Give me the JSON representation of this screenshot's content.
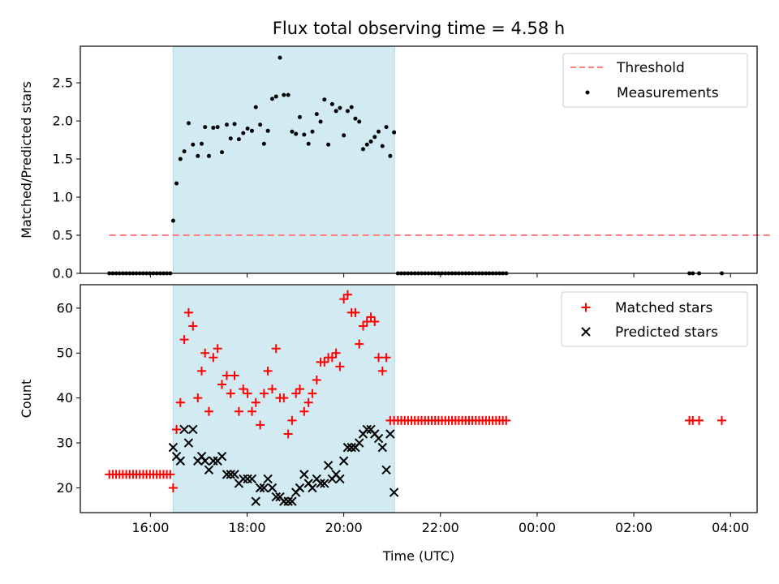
{
  "figure": {
    "title": "Flux total observing time = 4.58 h"
  },
  "chart_data": [
    {
      "type": "scatter",
      "title": "Flux total observing time = 4.58 h",
      "xlabel": "",
      "ylabel": "Matched/Predicted stars",
      "x_unit": "hours since 00:00 UTC (values above 24 are next day)",
      "xlim": [
        14.55,
        28.55
      ],
      "ylim": [
        0,
        2.98
      ],
      "yticks": [
        0.0,
        0.5,
        1.0,
        1.5,
        2.0,
        2.5
      ],
      "ytick_labels": [
        "0.0",
        "0.5",
        "1.0",
        "1.5",
        "2.0",
        "2.5"
      ],
      "grid": false,
      "legend": "top-right",
      "observing_window": [
        16.47,
        21.05
      ],
      "shade_color": "#add8e6",
      "series": [
        {
          "name": "Threshold",
          "style": "dashed-line",
          "color": "#ff7f7f",
          "x": [
            15.15,
            28.85
          ],
          "y": [
            0.5,
            0.5
          ]
        },
        {
          "name": "Measurements",
          "style": "dot",
          "color": "#000000",
          "x": [
            15.15,
            15.22,
            15.29,
            15.36,
            15.43,
            15.5,
            15.57,
            15.64,
            15.71,
            15.78,
            15.85,
            15.92,
            15.99,
            16.06,
            16.13,
            16.2,
            16.27,
            16.34,
            16.41,
            16.47,
            16.54,
            16.62,
            16.7,
            16.79,
            16.88,
            16.98,
            17.06,
            17.13,
            17.21,
            17.3,
            17.39,
            17.48,
            17.58,
            17.66,
            17.74,
            17.83,
            17.92,
            18.01,
            18.1,
            18.18,
            18.27,
            18.35,
            18.43,
            18.52,
            18.6,
            18.68,
            18.76,
            18.85,
            18.93,
            19.01,
            19.09,
            19.18,
            19.27,
            19.35,
            19.44,
            19.52,
            19.6,
            19.68,
            19.76,
            19.84,
            19.92,
            20.0,
            20.08,
            20.16,
            20.24,
            20.32,
            20.4,
            20.48,
            20.56,
            20.64,
            20.72,
            20.8,
            20.88,
            20.96,
            21.04,
            21.12,
            21.19,
            21.26,
            21.33,
            21.4,
            21.47,
            21.54,
            21.61,
            21.68,
            21.75,
            21.82,
            21.89,
            21.96,
            22.03,
            22.1,
            22.17,
            22.24,
            22.31,
            22.38,
            22.45,
            22.52,
            22.59,
            22.66,
            22.73,
            22.8,
            22.87,
            22.94,
            23.01,
            23.08,
            23.15,
            23.22,
            23.29,
            23.36,
            27.15,
            27.22,
            27.35,
            27.82
          ],
          "y": [
            0,
            0,
            0,
            0,
            0,
            0,
            0,
            0,
            0,
            0,
            0,
            0,
            0,
            0,
            0,
            0,
            0,
            0,
            0,
            0.69,
            1.18,
            1.5,
            1.6,
            1.97,
            1.69,
            1.54,
            1.7,
            1.92,
            1.54,
            1.91,
            1.92,
            1.59,
            1.95,
            1.77,
            1.96,
            1.76,
            1.84,
            1.9,
            1.87,
            2.18,
            1.95,
            1.7,
            1.87,
            2.29,
            2.32,
            2.83,
            2.34,
            2.34,
            1.86,
            1.83,
            2.05,
            1.82,
            1.7,
            1.86,
            2.09,
            1.99,
            2.28,
            1.69,
            2.22,
            2.13,
            2.17,
            1.81,
            2.13,
            2.18,
            2.03,
            1.99,
            1.63,
            1.69,
            1.73,
            1.79,
            1.86,
            1.67,
            1.92,
            1.54,
            1.85,
            0,
            0,
            0,
            0,
            0,
            0,
            0,
            0,
            0,
            0,
            0,
            0,
            0,
            0,
            0,
            0,
            0,
            0,
            0,
            0,
            0,
            0,
            0,
            0,
            0,
            0,
            0,
            0,
            0,
            0,
            0,
            0,
            0,
            0,
            0,
            0,
            0
          ]
        }
      ]
    },
    {
      "type": "scatter",
      "title": "",
      "xlabel": "Time (UTC)",
      "ylabel": "Count",
      "x_unit": "hours since 00:00 UTC (values above 24 are next day)",
      "xlim": [
        14.55,
        28.55
      ],
      "ylim": [
        14.5,
        65.2
      ],
      "xticks": [
        16,
        18,
        20,
        22,
        24,
        26,
        28
      ],
      "xtick_labels": [
        "16:00",
        "18:00",
        "20:00",
        "22:00",
        "00:00",
        "02:00",
        "04:00"
      ],
      "yticks": [
        20,
        30,
        40,
        50,
        60
      ],
      "ytick_labels": [
        "20",
        "30",
        "40",
        "50",
        "60"
      ],
      "grid": false,
      "legend": "top-right",
      "observing_window": [
        16.47,
        21.05
      ],
      "shade_color": "#add8e6",
      "series": [
        {
          "name": "Matched stars",
          "marker": "plus",
          "color": "#ff0000",
          "x": [
            15.15,
            15.22,
            15.29,
            15.36,
            15.43,
            15.5,
            15.57,
            15.64,
            15.71,
            15.78,
            15.85,
            15.92,
            15.99,
            16.06,
            16.13,
            16.2,
            16.27,
            16.34,
            16.41,
            16.47,
            16.54,
            16.62,
            16.7,
            16.79,
            16.88,
            16.98,
            17.06,
            17.13,
            17.21,
            17.3,
            17.39,
            17.48,
            17.58,
            17.66,
            17.74,
            17.83,
            17.92,
            18.01,
            18.1,
            18.18,
            18.27,
            18.35,
            18.43,
            18.52,
            18.6,
            18.68,
            18.76,
            18.85,
            18.93,
            19.01,
            19.09,
            19.18,
            19.27,
            19.35,
            19.44,
            19.52,
            19.6,
            19.68,
            19.76,
            19.84,
            19.92,
            20.0,
            20.08,
            20.16,
            20.24,
            20.32,
            20.4,
            20.48,
            20.56,
            20.64,
            20.72,
            20.8,
            20.88,
            20.96,
            21.04,
            21.12,
            21.19,
            21.26,
            21.33,
            21.4,
            21.47,
            21.54,
            21.61,
            21.68,
            21.75,
            21.82,
            21.89,
            21.96,
            22.03,
            22.1,
            22.17,
            22.24,
            22.31,
            22.38,
            22.45,
            22.52,
            22.59,
            22.66,
            22.73,
            22.8,
            22.87,
            22.94,
            23.01,
            23.08,
            23.15,
            23.22,
            23.29,
            23.36,
            27.15,
            27.22,
            27.35,
            27.82
          ],
          "y": [
            23,
            23,
            23,
            23,
            23,
            23,
            23,
            23,
            23,
            23,
            23,
            23,
            23,
            23,
            23,
            23,
            23,
            23,
            23,
            20,
            33,
            39,
            53,
            59,
            56,
            40,
            46,
            50,
            37,
            49,
            51,
            43,
            45,
            41,
            45,
            37,
            42,
            41,
            37,
            39,
            34,
            41,
            46,
            42,
            51,
            40,
            40,
            32,
            35,
            41,
            42,
            37,
            39,
            41,
            44,
            48,
            48,
            49,
            49,
            50,
            47,
            62,
            63,
            59,
            59,
            52,
            56,
            57,
            58,
            57,
            49,
            46,
            49,
            35,
            35,
            35,
            35,
            35,
            35,
            35,
            35,
            35,
            35,
            35,
            35,
            35,
            35,
            35,
            35,
            35,
            35,
            35,
            35,
            35,
            35,
            35,
            35,
            35,
            35,
            35,
            35,
            35,
            35,
            35,
            35,
            35,
            35,
            35,
            35,
            35,
            35,
            35
          ]
        },
        {
          "name": "Predicted stars",
          "marker": "x",
          "color": "#000000",
          "x": [
            16.47,
            16.54,
            16.62,
            16.7,
            16.79,
            16.88,
            16.98,
            17.06,
            17.13,
            17.21,
            17.3,
            17.39,
            17.48,
            17.58,
            17.66,
            17.74,
            17.83,
            17.92,
            18.01,
            18.1,
            18.18,
            18.27,
            18.35,
            18.43,
            18.52,
            18.6,
            18.68,
            18.76,
            18.85,
            18.93,
            19.01,
            19.09,
            19.18,
            19.27,
            19.35,
            19.44,
            19.52,
            19.6,
            19.68,
            19.76,
            19.84,
            19.92,
            20.0,
            20.08,
            20.16,
            20.24,
            20.32,
            20.4,
            20.48,
            20.56,
            20.64,
            20.72,
            20.8,
            20.88,
            20.96,
            21.04
          ],
          "y": [
            29,
            27,
            26,
            33,
            30,
            33,
            26,
            27,
            26,
            24,
            26,
            26,
            27,
            23,
            23,
            23,
            21,
            22,
            22,
            22,
            17,
            20,
            20,
            22,
            20,
            18,
            18,
            17,
            17,
            17,
            19,
            20,
            23,
            21,
            20,
            22,
            21,
            21,
            25,
            22,
            23,
            22,
            26,
            29,
            29,
            29,
            30,
            32,
            33,
            33,
            32,
            31,
            29,
            24,
            32,
            19
          ]
        }
      ]
    }
  ]
}
